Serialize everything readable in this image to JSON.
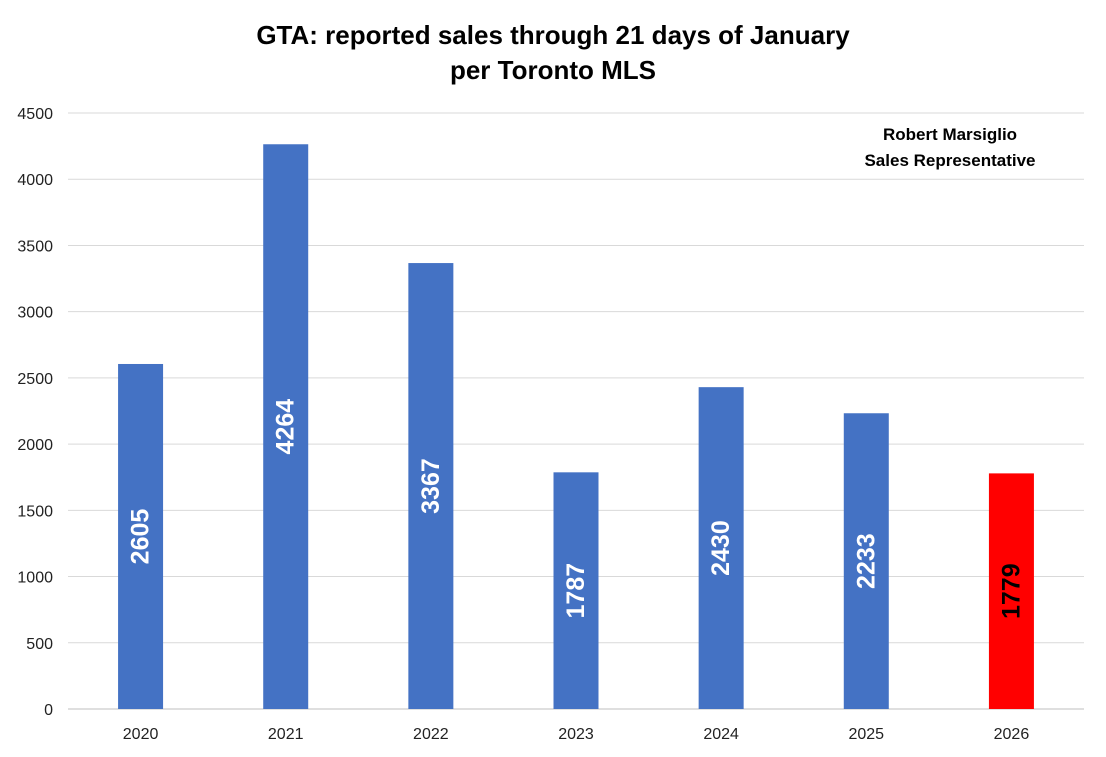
{
  "chart_data": {
    "type": "bar",
    "title": [
      "GTA: reported sales through 21 days of January",
      "per Toronto MLS"
    ],
    "annotation": [
      "Robert Marsiglio",
      "Sales Representative"
    ],
    "categories": [
      "2020",
      "2021",
      "2022",
      "2023",
      "2024",
      "2025",
      "2026"
    ],
    "values": [
      2605,
      4264,
      3367,
      1787,
      2430,
      2233,
      1779
    ],
    "data_labels": [
      "2605",
      "4264",
      "3367",
      "1787",
      "2430",
      "2233",
      "1779"
    ],
    "bar_colors": [
      "#4472C4",
      "#4472C4",
      "#4472C4",
      "#4472C4",
      "#4472C4",
      "#4472C4",
      "#FF0000"
    ],
    "label_colors": [
      "#FFFFFF",
      "#FFFFFF",
      "#FFFFFF",
      "#FFFFFF",
      "#FFFFFF",
      "#FFFFFF",
      "#000000"
    ],
    "ylim": [
      0,
      4500
    ],
    "yticks": [
      "0",
      "500",
      "1000",
      "1500",
      "2000",
      "2500",
      "3000",
      "3500",
      "4000",
      "4500"
    ],
    "grid": true,
    "xlabel": "",
    "ylabel": ""
  }
}
